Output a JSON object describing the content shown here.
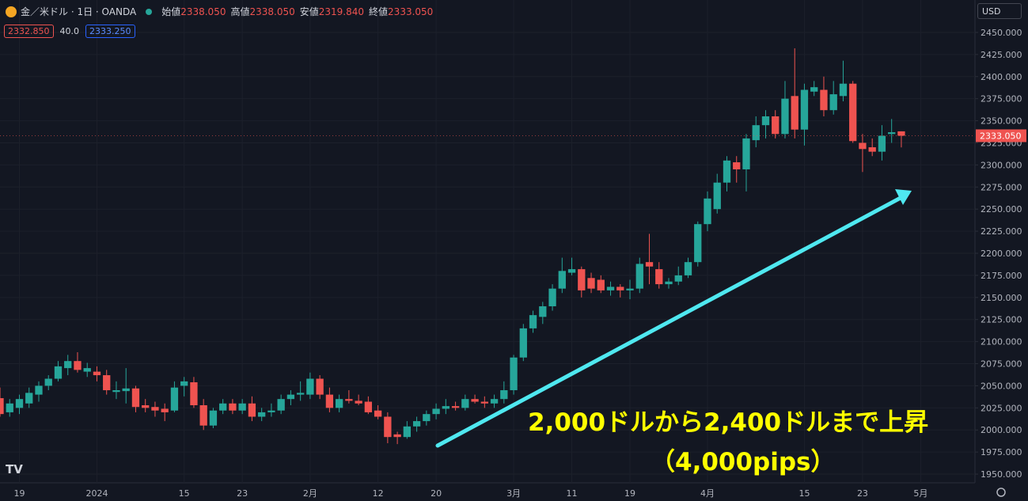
{
  "header": {
    "symbol": "金／米ドル · 1日 · OANDA",
    "open_label": "始値",
    "open": "2338.050",
    "high_label": "高値",
    "high": "2338.050",
    "low_label": "安値",
    "low": "2319.840",
    "close_label": "終値",
    "close": "2333.050",
    "bid": "2332.850",
    "spread": "40.0",
    "ask": "2333.250",
    "currency": "USD"
  },
  "chart_data": {
    "type": "candlestick",
    "annotation": [
      "2,000ドルから2,400ドルまで上昇",
      "（4,000pips）"
    ],
    "up_color": "#26a69a",
    "down_color": "#ef5350",
    "xlim": [
      0,
      100.6
    ],
    "xticks": [
      {
        "value": 2,
        "label": "19"
      },
      {
        "value": 10,
        "label": "2024"
      },
      {
        "value": 19,
        "label": "15"
      },
      {
        "value": 25,
        "label": "23"
      },
      {
        "value": 32,
        "label": "2月"
      },
      {
        "value": 39,
        "label": "12"
      },
      {
        "value": 45,
        "label": "20"
      },
      {
        "value": 53,
        "label": "3月"
      },
      {
        "value": 59,
        "label": "11"
      },
      {
        "value": 65,
        "label": "19"
      },
      {
        "value": 73,
        "label": "4月"
      },
      {
        "value": 83,
        "label": "15"
      },
      {
        "value": 89,
        "label": "23"
      },
      {
        "value": 95,
        "label": "5月"
      }
    ],
    "ylim": [
      1938.4,
      2486.7
    ],
    "yticks": [
      {
        "value": 1950,
        "label": "1950.000"
      },
      {
        "value": 1975,
        "label": "1975.000"
      },
      {
        "value": 2000,
        "label": "2000.000"
      },
      {
        "value": 2025,
        "label": "2025.000"
      },
      {
        "value": 2050,
        "label": "2050.000"
      },
      {
        "value": 2075,
        "label": "2075.000"
      },
      {
        "value": 2100,
        "label": "2100.000"
      },
      {
        "value": 2125,
        "label": "2125.000"
      },
      {
        "value": 2150,
        "label": "2150.000"
      },
      {
        "value": 2175,
        "label": "2175.000"
      },
      {
        "value": 2200,
        "label": "2200.000"
      },
      {
        "value": 2225,
        "label": "2225.000"
      },
      {
        "value": 2250,
        "label": "2250.000"
      },
      {
        "value": 2275,
        "label": "2275.000"
      },
      {
        "value": 2300,
        "label": "2300.000"
      },
      {
        "value": 2325,
        "label": "2325.000"
      },
      {
        "value": 2350,
        "label": "2350.000"
      },
      {
        "value": 2375,
        "label": "2375.000"
      },
      {
        "value": 2400,
        "label": "2400.000"
      },
      {
        "value": 2425,
        "label": "2425.000"
      },
      {
        "value": 2450,
        "label": "2450.000"
      }
    ],
    "grid": true,
    "open": [
      2036,
      2020,
      2025,
      2030,
      2040,
      2050,
      2058,
      2070,
      2078,
      2066,
      2066,
      2062,
      2043,
      2044,
      2047,
      2028,
      2026,
      2024,
      2022,
      2050,
      2054,
      2028,
      2005,
      2022,
      2030,
      2022,
      2030,
      2015,
      2020,
      2022,
      2035,
      2040,
      2040,
      2058,
      2040,
      2025,
      2035,
      2033,
      2032,
      2022,
      2015,
      1995,
      1992,
      2004,
      2010,
      2018,
      2024,
      2027,
      2025,
      2035,
      2032,
      2030,
      2035,
      2045,
      2082,
      2115,
      2128,
      2140,
      2160,
      2178,
      2182,
      2172,
      2170,
      2158,
      2162,
      2158,
      2160,
      2190,
      2182,
      2165,
      2168,
      2175,
      2190,
      2233,
      2250,
      2280,
      2303,
      2295,
      2328,
      2345,
      2355,
      2335,
      2378,
      2340,
      2383,
      2385,
      2362,
      2378,
      2392,
      2325,
      2320,
      2315,
      2335,
      2338.05
    ],
    "high": [
      2048,
      2035,
      2040,
      2048,
      2055,
      2062,
      2078,
      2085,
      2088,
      2076,
      2072,
      2068,
      2055,
      2070,
      2050,
      2035,
      2032,
      2030,
      2055,
      2060,
      2060,
      2035,
      2025,
      2035,
      2035,
      2035,
      2038,
      2025,
      2030,
      2040,
      2045,
      2055,
      2065,
      2062,
      2048,
      2040,
      2045,
      2040,
      2038,
      2028,
      2020,
      1998,
      2010,
      2015,
      2022,
      2030,
      2035,
      2032,
      2040,
      2040,
      2038,
      2040,
      2055,
      2085,
      2120,
      2135,
      2145,
      2165,
      2195,
      2195,
      2185,
      2178,
      2175,
      2168,
      2165,
      2170,
      2195,
      2222,
      2190,
      2172,
      2185,
      2195,
      2236,
      2270,
      2290,
      2310,
      2310,
      2335,
      2355,
      2362,
      2362,
      2395,
      2432,
      2392,
      2395,
      2400,
      2395,
      2418,
      2395,
      2335,
      2330,
      2345,
      2352,
      2338.05
    ],
    "low": [
      2015,
      2015,
      2018,
      2025,
      2032,
      2045,
      2055,
      2062,
      2065,
      2060,
      2055,
      2040,
      2035,
      2030,
      2020,
      2020,
      2015,
      2010,
      2020,
      2038,
      2025,
      2000,
      2002,
      2018,
      2018,
      2018,
      2010,
      2010,
      2015,
      2018,
      2028,
      2033,
      2035,
      2035,
      2020,
      2020,
      2030,
      2028,
      2018,
      2012,
      1985,
      1984,
      1990,
      1998,
      2005,
      2012,
      2018,
      2022,
      2022,
      2030,
      2025,
      2025,
      2030,
      2040,
      2078,
      2110,
      2120,
      2135,
      2155,
      2175,
      2150,
      2155,
      2155,
      2152,
      2150,
      2148,
      2155,
      2165,
      2160,
      2160,
      2164,
      2172,
      2185,
      2225,
      2245,
      2270,
      2280,
      2270,
      2320,
      2330,
      2330,
      2330,
      2330,
      2322,
      2378,
      2355,
      2357,
      2372,
      2325,
      2292,
      2310,
      2305,
      2325,
      2319.84
    ],
    "close": [
      2018,
      2030,
      2035,
      2042,
      2050,
      2058,
      2072,
      2078,
      2068,
      2070,
      2062,
      2045,
      2045,
      2047,
      2026,
      2025,
      2022,
      2020,
      2048,
      2055,
      2028,
      2005,
      2022,
      2030,
      2022,
      2030,
      2015,
      2020,
      2022,
      2035,
      2040,
      2042,
      2058,
      2040,
      2025,
      2035,
      2033,
      2030,
      2020,
      2015,
      1992,
      1992,
      2004,
      2010,
      2018,
      2024,
      2027,
      2025,
      2035,
      2032,
      2030,
      2035,
      2045,
      2082,
      2115,
      2130,
      2140,
      2160,
      2180,
      2182,
      2158,
      2160,
      2158,
      2162,
      2158,
      2160,
      2188,
      2185,
      2165,
      2168,
      2175,
      2190,
      2233,
      2262,
      2280,
      2305,
      2295,
      2330,
      2345,
      2355,
      2335,
      2375,
      2340,
      2385,
      2388,
      2362,
      2380,
      2392,
      2327,
      2318,
      2315,
      2333,
      2337,
      2333.05
    ]
  }
}
